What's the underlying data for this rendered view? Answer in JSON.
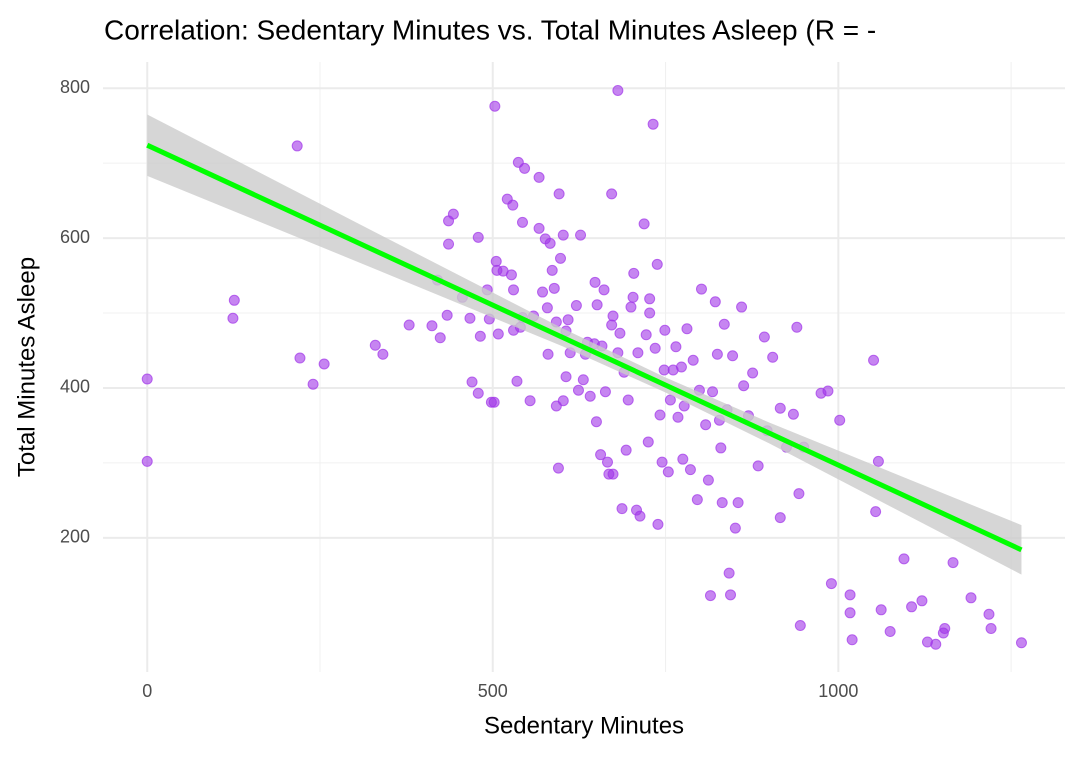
{
  "chart_data": {
    "type": "scatter",
    "title": "Correlation: Sedentary Minutes vs. Total Minutes Asleep (R = -",
    "x_label": "Sedentary Minutes",
    "y_label": "Total Minutes Asleep",
    "xlim": [
      -64,
      1328
    ],
    "ylim": [
      21,
      835
    ],
    "xticks": [
      0,
      500,
      1000
    ],
    "yticks": [
      200,
      400,
      600,
      800
    ],
    "x_minor_grid": [
      250,
      750,
      1250
    ],
    "y_minor_grid": [
      300,
      500,
      700
    ],
    "grid": true,
    "color": "#a033e8",
    "x": [
      0,
      0,
      126,
      124,
      217,
      221,
      240,
      256,
      330,
      341,
      379,
      412,
      424,
      420,
      434,
      436,
      443,
      436,
      456,
      467,
      470,
      479,
      479,
      482,
      492,
      495,
      498,
      502,
      503,
      505,
      506,
      508,
      515,
      521,
      529,
      527,
      530,
      530,
      537,
      546,
      535,
      540,
      543,
      543,
      554,
      559,
      567,
      567,
      572,
      576,
      579,
      583,
      580,
      586,
      589,
      592,
      595,
      596,
      598,
      592,
      602,
      602,
      606,
      606,
      609,
      612,
      621,
      624,
      627,
      631,
      634,
      637,
      641,
      647,
      648,
      650,
      651,
      656,
      658,
      661,
      663,
      666,
      668,
      672,
      672,
      674,
      674,
      681,
      681,
      684,
      687,
      690,
      693,
      696,
      700,
      703,
      704,
      708,
      710,
      713,
      719,
      722,
      725,
      727,
      727,
      732,
      735,
      738,
      739,
      742,
      745,
      748,
      749,
      754,
      757,
      761,
      765,
      768,
      773,
      775,
      777,
      781,
      786,
      790,
      796,
      799,
      802,
      808,
      812,
      815,
      818,
      822,
      825,
      828,
      830,
      832,
      835,
      839,
      842,
      844,
      847,
      851,
      855,
      860,
      863,
      870,
      876,
      884,
      893,
      897,
      905,
      916,
      916,
      925,
      935,
      940,
      943,
      945,
      950,
      975,
      985,
      990,
      1002,
      1017,
      1017,
      1020,
      1051,
      1054,
      1058,
      1062,
      1075,
      1095,
      1106,
      1121,
      1129,
      1141,
      1154,
      1152,
      1166,
      1192,
      1218,
      1221,
      1265
    ],
    "y": [
      412,
      302,
      517,
      493,
      723,
      440,
      405,
      432,
      457,
      445,
      484,
      483,
      467,
      544,
      497,
      623,
      632,
      592,
      521,
      493,
      408,
      393,
      601,
      469,
      531,
      492,
      381,
      381,
      776,
      569,
      557,
      472,
      556,
      652,
      644,
      551,
      477,
      531,
      701,
      693,
      409,
      481,
      494,
      621,
      383,
      496,
      681,
      613,
      528,
      599,
      507,
      593,
      445,
      557,
      533,
      376,
      293,
      659,
      573,
      488,
      604,
      383,
      476,
      415,
      491,
      447,
      510,
      397,
      604,
      411,
      445,
      461,
      389,
      459,
      541,
      355,
      511,
      311,
      456,
      531,
      395,
      301,
      285,
      484,
      659,
      285,
      496,
      797,
      447,
      473,
      239,
      421,
      317,
      384,
      508,
      521,
      553,
      237,
      447,
      229,
      619,
      471,
      328,
      500,
      519,
      752,
      453,
      565,
      218,
      364,
      301,
      424,
      477,
      288,
      384,
      424,
      455,
      361,
      428,
      305,
      376,
      479,
      291,
      437,
      251,
      397,
      532,
      351,
      277,
      123,
      395,
      515,
      445,
      357,
      320,
      247,
      485,
      371,
      153,
      124,
      443,
      213,
      247,
      508,
      403,
      363,
      420,
      296,
      468,
      343,
      441,
      373,
      227,
      321,
      365,
      481,
      259,
      83,
      321,
      393,
      396,
      139,
      357,
      124,
      100,
      64,
      437,
      235,
      302,
      104,
      75,
      172,
      108,
      116,
      61,
      58,
      79,
      73,
      167,
      120,
      98,
      79,
      60
    ],
    "fit": {
      "color": "#00ff00",
      "x": [
        0,
        1265
      ],
      "y": [
        724,
        184
      ]
    },
    "band": {
      "color": "#cccccc",
      "x": [
        0,
        300,
        600,
        750,
        900,
        1265
      ],
      "lower": [
        683,
        570,
        456,
        394,
        326,
        151
      ],
      "upper": [
        765,
        622,
        480,
        414,
        354,
        217
      ]
    }
  }
}
